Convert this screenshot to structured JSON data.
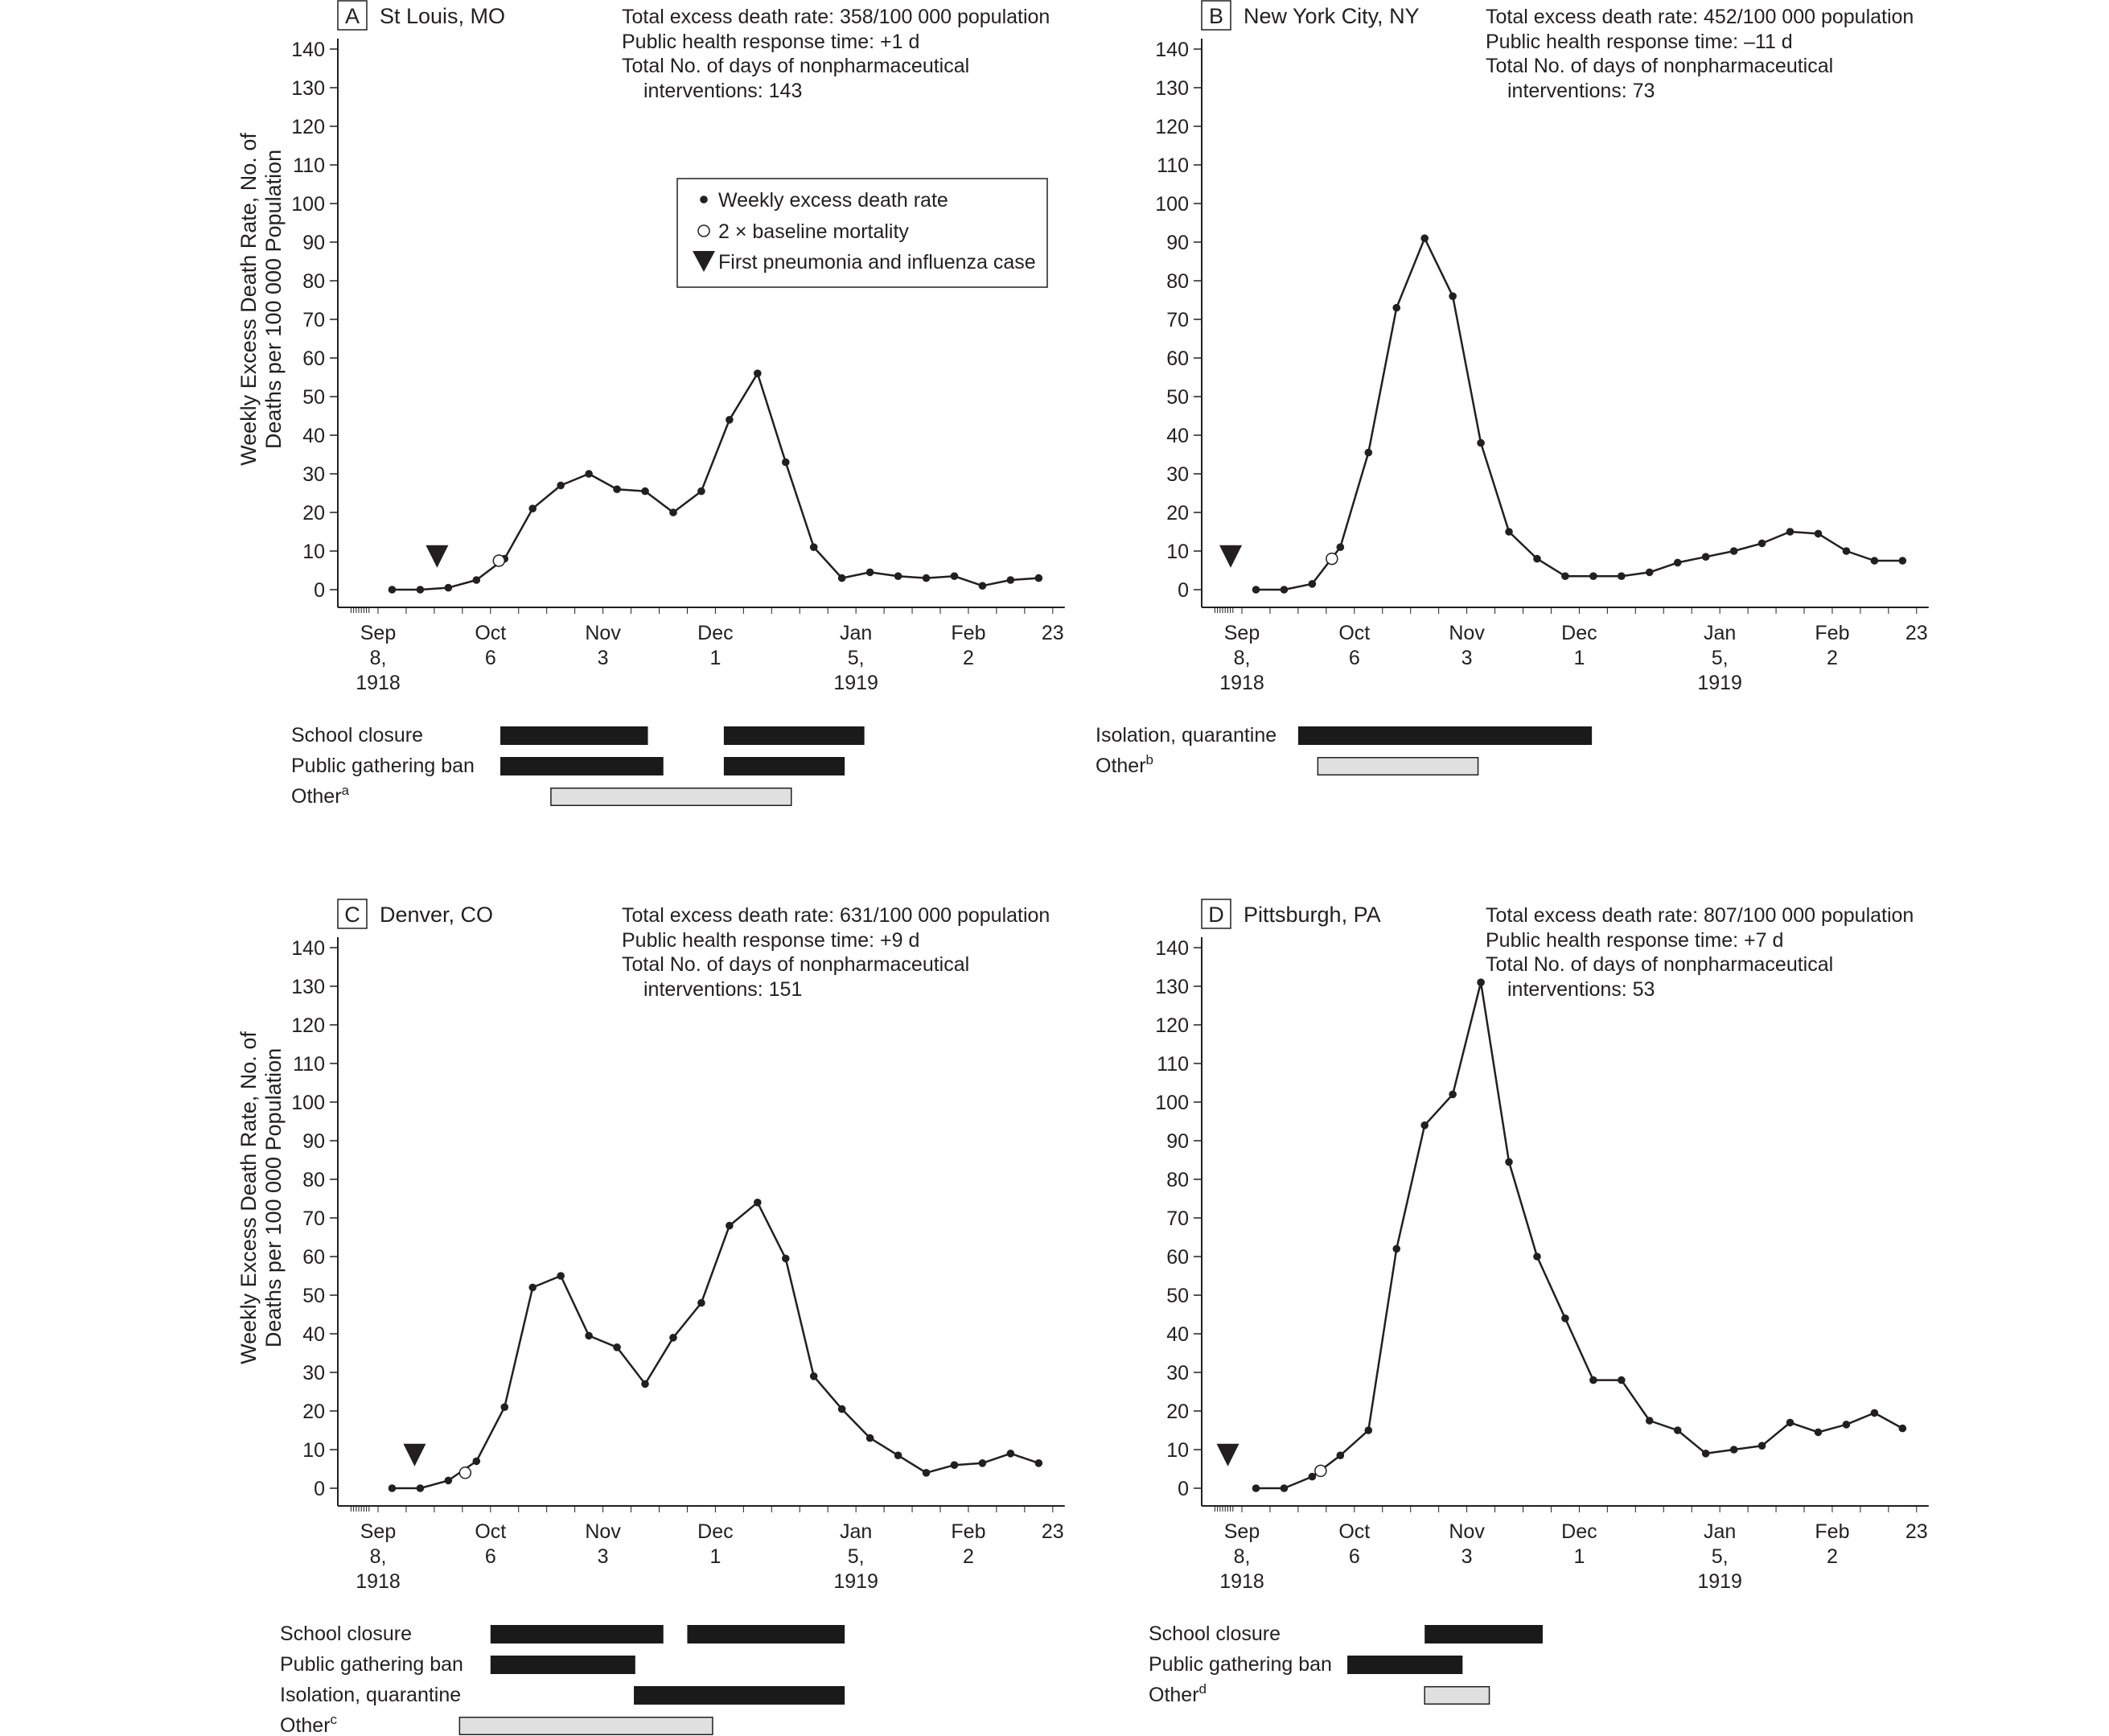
{
  "y_axis_label_line1": "Weekly Excess Death Rate, No. of",
  "y_axis_label_line2": "Deaths per 100 000 Population",
  "legend": {
    "dot": "Weekly excess death rate",
    "open": "2 × baseline mortality",
    "triangle": "First pneumonia and influenza case"
  },
  "colors": {
    "line": "#231f20",
    "np_dark": "#1a1a1a",
    "np_light": "#e0e0e0",
    "axis": "#231f20"
  },
  "chart_data": [
    {
      "type": "line",
      "letter": "A",
      "title": "St Louis, MO",
      "info": [
        "Total excess death rate: 358/100 000 population",
        "Public health response time: +1 d",
        "Total No. of days of nonpharmaceutical",
        "interventions: 143"
      ],
      "x_ticks": [
        {
          "lines": [
            "Sep",
            "8,",
            "1918"
          ],
          "week": 0
        },
        {
          "lines": [
            "Oct",
            "6"
          ],
          "week": 4
        },
        {
          "lines": [
            "Nov",
            "3"
          ],
          "week": 8
        },
        {
          "lines": [
            "Dec",
            "1"
          ],
          "week": 12
        },
        {
          "lines": [
            "Jan",
            "5,",
            "1919"
          ],
          "week": 17
        },
        {
          "lines": [
            "Feb",
            "2"
          ],
          "week": 21
        },
        {
          "lines": [
            "23"
          ],
          "week": 24
        }
      ],
      "ylim": [
        0,
        140
      ],
      "y_ticks": [
        0,
        10,
        20,
        30,
        40,
        50,
        60,
        70,
        80,
        90,
        100,
        110,
        120,
        130,
        140
      ],
      "x_weeks": [
        0.5,
        1.5,
        2.5,
        3.5,
        4.5,
        5.5,
        6.5,
        7.5,
        8.5,
        9.5,
        10.5,
        11.5,
        12.5,
        13.5,
        14.5,
        15.5,
        16.5,
        17.5,
        18.5,
        19.5,
        20.5,
        21.5,
        22.5,
        23.5
      ],
      "values": [
        0,
        0,
        0.5,
        2.5,
        8,
        21,
        27,
        30,
        26,
        25.5,
        20,
        25.5,
        44,
        56,
        33,
        11,
        3,
        4.5,
        3.5,
        3,
        3.5,
        1,
        2.5,
        3
      ],
      "baseline_week": 4.3,
      "baseline_value": 7.5,
      "first_case_week": 2.1,
      "interventions": [
        {
          "label": "School closure",
          "sup": "",
          "segments": [
            [
              4.35,
              9.6
            ],
            [
              12.3,
              17.3
            ]
          ],
          "style": "dark"
        },
        {
          "label": "Public gathering ban",
          "sup": "",
          "segments": [
            [
              4.35,
              10.15
            ],
            [
              12.3,
              16.6
            ]
          ],
          "style": "dark"
        },
        {
          "label": "Other",
          "sup": "a",
          "segments": [
            [
              6.15,
              14.7
            ]
          ],
          "style": "light"
        }
      ]
    },
    {
      "type": "line",
      "letter": "B",
      "title": "New York City, NY",
      "info": [
        "Total excess death rate: 452/100 000 population",
        "Public health response time: –11 d",
        "Total No. of days of nonpharmaceutical",
        "interventions: 73"
      ],
      "x_ticks": [
        {
          "lines": [
            "Sep",
            "8,",
            "1918"
          ],
          "week": 0
        },
        {
          "lines": [
            "Oct",
            "6"
          ],
          "week": 4
        },
        {
          "lines": [
            "Nov",
            "3"
          ],
          "week": 8
        },
        {
          "lines": [
            "Dec",
            "1"
          ],
          "week": 12
        },
        {
          "lines": [
            "Jan",
            "5,",
            "1919"
          ],
          "week": 17
        },
        {
          "lines": [
            "Feb",
            "2"
          ],
          "week": 21
        },
        {
          "lines": [
            "23"
          ],
          "week": 24
        }
      ],
      "ylim": [
        0,
        140
      ],
      "y_ticks": [
        0,
        10,
        20,
        30,
        40,
        50,
        60,
        70,
        80,
        90,
        100,
        110,
        120,
        130,
        140
      ],
      "x_weeks": [
        0.5,
        1.5,
        2.5,
        3.5,
        4.5,
        5.5,
        6.5,
        7.5,
        8.5,
        9.5,
        10.5,
        11.5,
        12.5,
        13.5,
        14.5,
        15.5,
        16.5,
        17.5,
        18.5,
        19.5,
        20.5,
        21.5,
        22.5,
        23.5
      ],
      "values": [
        0,
        0,
        1.5,
        11,
        35.5,
        73,
        91,
        76,
        38,
        15,
        8,
        3.5,
        3.5,
        3.5,
        4.5,
        7,
        8.5,
        10,
        12,
        15,
        14.5,
        10,
        7.5,
        7.5
      ],
      "baseline_week": 3.2,
      "baseline_value": 8,
      "first_case_week": -0.4,
      "interventions": [
        {
          "label": "Isolation, quarantine",
          "sup": "",
          "segments": [
            [
              2.0,
              12.45
            ]
          ],
          "style": "dark"
        },
        {
          "label": "Other",
          "sup": "b",
          "segments": [
            [
              2.7,
              8.4
            ]
          ],
          "style": "light"
        }
      ]
    },
    {
      "type": "line",
      "letter": "C",
      "title": "Denver, CO",
      "info": [
        "Total excess death rate: 631/100 000 population",
        "Public health response time: +9 d",
        "Total No. of days of nonpharmaceutical",
        "interventions: 151"
      ],
      "x_ticks": [
        {
          "lines": [
            "Sep",
            "8,",
            "1918"
          ],
          "week": 0
        },
        {
          "lines": [
            "Oct",
            "6"
          ],
          "week": 4
        },
        {
          "lines": [
            "Nov",
            "3"
          ],
          "week": 8
        },
        {
          "lines": [
            "Dec",
            "1"
          ],
          "week": 12
        },
        {
          "lines": [
            "Jan",
            "5,",
            "1919"
          ],
          "week": 17
        },
        {
          "lines": [
            "Feb",
            "2"
          ],
          "week": 21
        },
        {
          "lines": [
            "23"
          ],
          "week": 24
        }
      ],
      "ylim": [
        0,
        140
      ],
      "y_ticks": [
        0,
        10,
        20,
        30,
        40,
        50,
        60,
        70,
        80,
        90,
        100,
        110,
        120,
        130,
        140
      ],
      "x_weeks": [
        0.5,
        1.5,
        2.5,
        3.5,
        4.5,
        5.5,
        6.5,
        7.5,
        8.5,
        9.5,
        10.5,
        11.5,
        12.5,
        13.5,
        14.5,
        15.5,
        16.5,
        17.5,
        18.5,
        19.5,
        20.5,
        21.5,
        22.5,
        23.5
      ],
      "values": [
        0,
        0,
        2,
        7,
        21,
        52,
        55,
        39.5,
        36.5,
        27,
        39,
        48,
        68,
        74,
        59.5,
        29,
        20.5,
        13,
        8.5,
        4,
        6,
        6.5,
        9,
        6.5
      ],
      "baseline_week": 3.1,
      "baseline_value": 4,
      "first_case_week": 1.3,
      "interventions": [
        {
          "label": "School closure",
          "sup": "",
          "segments": [
            [
              4.0,
              10.15
            ],
            [
              11.0,
              16.6
            ]
          ],
          "style": "dark"
        },
        {
          "label": "Public gathering ban",
          "sup": "",
          "segments": [
            [
              4.0,
              9.15
            ]
          ],
          "style": "dark"
        },
        {
          "label": "Isolation, quarantine",
          "sup": "",
          "segments": [
            [
              9.1,
              16.6
            ]
          ],
          "style": "dark"
        },
        {
          "label": "Other",
          "sup": "c",
          "segments": [
            [
              2.9,
              11.9
            ]
          ],
          "style": "light"
        }
      ]
    },
    {
      "type": "line",
      "letter": "D",
      "title": "Pittsburgh, PA",
      "info": [
        "Total excess death rate: 807/100 000 population",
        "Public health response time: +7 d",
        "Total No. of days of nonpharmaceutical",
        "interventions: 53"
      ],
      "x_ticks": [
        {
          "lines": [
            "Sep",
            "8,",
            "1918"
          ],
          "week": 0
        },
        {
          "lines": [
            "Oct",
            "6"
          ],
          "week": 4
        },
        {
          "lines": [
            "Nov",
            "3"
          ],
          "week": 8
        },
        {
          "lines": [
            "Dec",
            "1"
          ],
          "week": 12
        },
        {
          "lines": [
            "Jan",
            "5,",
            "1919"
          ],
          "week": 17
        },
        {
          "lines": [
            "Feb",
            "2"
          ],
          "week": 21
        },
        {
          "lines": [
            "23"
          ],
          "week": 24
        }
      ],
      "ylim": [
        0,
        140
      ],
      "y_ticks": [
        0,
        10,
        20,
        30,
        40,
        50,
        60,
        70,
        80,
        90,
        100,
        110,
        120,
        130,
        140
      ],
      "x_weeks": [
        0.5,
        1.5,
        2.5,
        3.5,
        4.5,
        5.5,
        6.5,
        7.5,
        8.5,
        9.5,
        10.5,
        11.5,
        12.5,
        13.5,
        14.5,
        15.5,
        16.5,
        17.5,
        18.5,
        19.5,
        20.5,
        21.5,
        22.5,
        23.5
      ],
      "values": [
        0,
        0,
        3,
        8.5,
        15,
        62,
        94,
        102,
        131,
        84.5,
        60,
        44,
        28,
        28,
        17.5,
        15,
        9,
        10,
        11,
        17,
        14.5,
        16.5,
        19.5,
        15.5
      ],
      "baseline_week": 2.8,
      "baseline_value": 4.5,
      "first_case_week": -0.5,
      "interventions": [
        {
          "label": "School closure",
          "sup": "",
          "segments": [
            [
              6.5,
              10.7
            ]
          ],
          "style": "dark"
        },
        {
          "label": "Public gathering ban",
          "sup": "",
          "segments": [
            [
              3.75,
              7.85
            ]
          ],
          "style": "dark"
        },
        {
          "label": "Other",
          "sup": "d",
          "segments": [
            [
              6.5,
              8.8
            ]
          ],
          "style": "light"
        }
      ]
    }
  ]
}
